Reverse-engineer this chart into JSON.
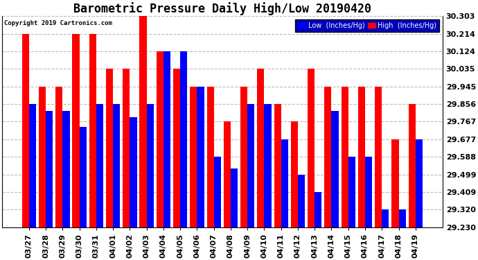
{
  "title": "Barometric Pressure Daily High/Low 20190420",
  "copyright": "Copyright 2019 Cartronics.com",
  "ylabel_right_ticks": [
    29.23,
    29.32,
    29.409,
    29.499,
    29.588,
    29.677,
    29.767,
    29.856,
    29.945,
    30.035,
    30.124,
    30.214,
    30.303
  ],
  "categories": [
    "03/27",
    "03/28",
    "03/29",
    "03/30",
    "03/31",
    "04/01",
    "04/02",
    "04/03",
    "04/04",
    "04/05",
    "04/06",
    "04/07",
    "04/08",
    "04/09",
    "04/10",
    "04/11",
    "04/12",
    "04/13",
    "04/14",
    "04/15",
    "04/16",
    "04/17",
    "04/18",
    "04/19"
  ],
  "high_values": [
    30.214,
    29.945,
    29.945,
    30.214,
    30.214,
    30.035,
    30.035,
    30.303,
    30.124,
    30.035,
    29.945,
    29.945,
    29.767,
    29.945,
    30.035,
    29.856,
    29.767,
    30.035,
    29.945,
    29.945,
    29.945,
    29.945,
    29.677,
    29.856
  ],
  "low_values": [
    29.856,
    29.82,
    29.82,
    29.74,
    29.856,
    29.856,
    29.79,
    29.856,
    30.124,
    30.124,
    29.945,
    29.588,
    29.53,
    29.856,
    29.856,
    29.677,
    29.499,
    29.409,
    29.82,
    29.588,
    29.588,
    29.32,
    29.32,
    29.677
  ],
  "low_color": "#0000ff",
  "high_color": "#ff0000",
  "bg_color": "#ffffff",
  "grid_color": "#bbbbbb",
  "ymin": 29.23,
  "ymax": 30.303,
  "title_fontsize": 12,
  "tick_fontsize": 8,
  "legend_low_label": "Low  (Inches/Hg)",
  "legend_high_label": "High  (Inches/Hg)"
}
